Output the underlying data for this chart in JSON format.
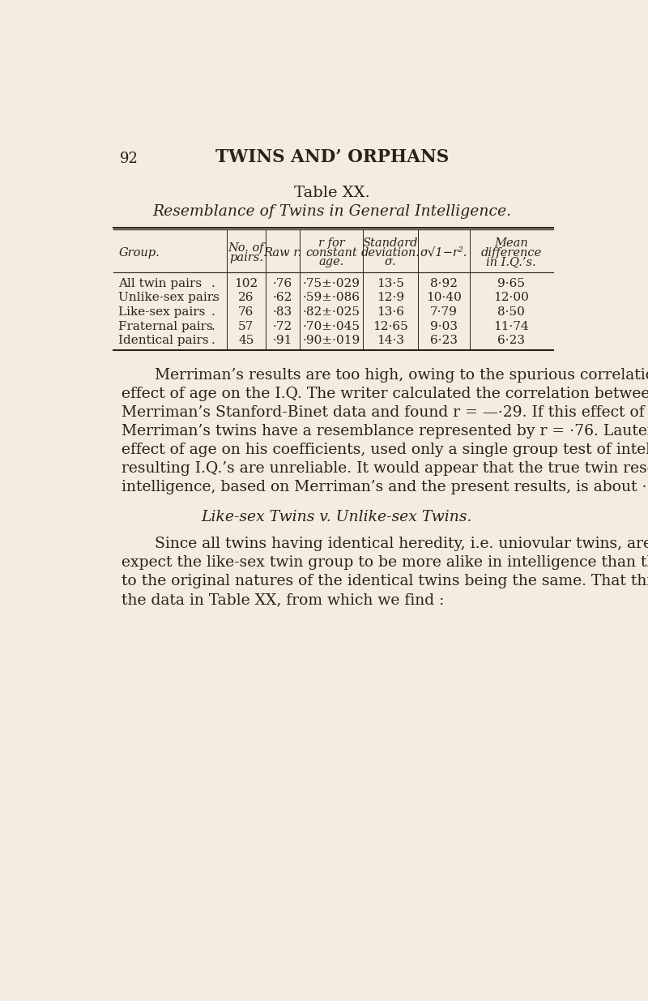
{
  "bg_color": "#f5ebe0",
  "text_color": "#2a2218",
  "page_number": "92",
  "header_title": "TWINS AND’ ORPHANS",
  "table_title": "Table XX.",
  "table_subtitle": "Resemblance of Twins in General Intelligence.",
  "col_headers": [
    "Group.",
    "No. of\npairs.",
    "Raw r.",
    "r for\nconstant\nage.",
    "Standard\ndeviation.\nσ.",
    "σ√1−r².",
    "Mean\ndifference\nin I.Q.’s."
  ],
  "rows": [
    [
      "All twin pairs",
      "102",
      "·76",
      "·75±·029",
      "13·5",
      "8·92",
      "9·65"
    ],
    [
      "Unlike-sex pairs",
      "26",
      "·62",
      "·59±·086",
      "12·9",
      "10·40",
      "12·00"
    ],
    [
      "Like-sex pairs",
      "76",
      "·83",
      "·82±·025",
      "13·6",
      "7·79",
      "8·50"
    ],
    [
      "Fraternal pairs",
      "57",
      "·72",
      "·70±·045",
      "12·65",
      "9·03",
      "11·74"
    ],
    [
      "Identical pairs",
      "45",
      "·91",
      "·90±·019",
      "14·3",
      "6·23",
      "6·23"
    ]
  ],
  "body_paragraphs": [
    "Merriman’s results are too high, owing to the spurious correlation he obtained by neglecting the effect of age on the I.Q.   The writer calculated the correlation between age and I.Q. for Merriman’s Stanford-Binet data and found r = —·29.   If this effect of age is eliminated, Merriman’s twins have a resemblance represented by r = ·76.   Lauterbach, while eliminating the effect of age on his coefficients, used only a single group test of intelligence, and hence his resulting I.Q.’s are unreliable. It would appear that the true twin resemblance in general intelligence, based on Merriman’s and the present results, is about ·75.",
    "Like-sex Twins v. Unlike-sex Twins.",
    "Since all twins having identical heredity, i.e. uniovular twins, are of the same sex, we would expect the like-sex twin group to be more alike in intelligence than the unlike-sex group, owing to the original natures of the identical twins being the same.   That this is so is borne out by the data in Table XX, from which we find :"
  ]
}
